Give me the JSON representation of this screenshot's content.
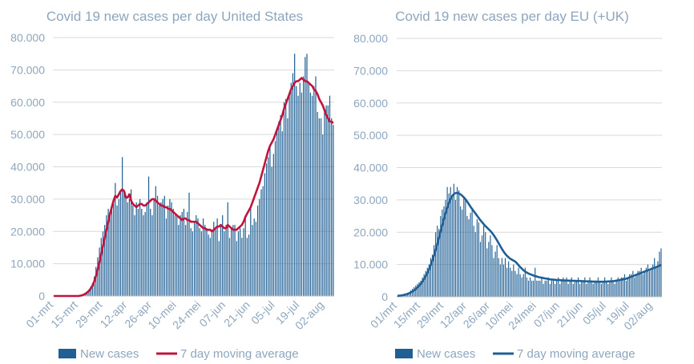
{
  "chart_data": [
    {
      "type": "bar+line",
      "title": "Covid 19 new cases per day United States",
      "colors": {
        "bars": "#1f5f94",
        "line": "#c0143c",
        "text": "#8ea6bd",
        "grid": "#d9d9d9"
      },
      "ylim": [
        0,
        80000
      ],
      "ytick_labels": [
        "0",
        "10.000",
        "20.000",
        "30.000",
        "40.000",
        "50.000",
        "60.000",
        "70.000",
        "80.000"
      ],
      "ytick_values": [
        0,
        10000,
        20000,
        30000,
        40000,
        50000,
        60000,
        70000,
        80000
      ],
      "xtick_labels": [
        "01-mrt",
        "15-mrt",
        "29-mrt",
        "12-apr",
        "26-apr",
        "10-mei",
        "24-mei",
        "07-jun",
        "21-jun",
        "05-jul",
        "19-jul",
        "02-aug"
      ],
      "legend": [
        "New cases",
        "7 day moving average"
      ],
      "x_start": "2020-03-01",
      "n_days": 160,
      "series": [
        {
          "name": "New cases",
          "kind": "bar",
          "values": [
            0,
            0,
            0,
            0,
            0,
            0,
            0,
            0,
            0,
            0,
            0,
            0,
            0,
            0,
            0,
            200,
            400,
            600,
            1000,
            1500,
            2000,
            3000,
            4000,
            6000,
            9000,
            12000,
            15000,
            18000,
            20000,
            22000,
            25000,
            27000,
            26000,
            28000,
            30000,
            35000,
            28000,
            30000,
            32000,
            43000,
            32000,
            31000,
            29000,
            30000,
            33000,
            28000,
            25000,
            29000,
            27000,
            30000,
            27000,
            25000,
            26000,
            29000,
            37000,
            27000,
            25000,
            30000,
            34000,
            31000,
            28000,
            29000,
            30000,
            31000,
            24000,
            28000,
            30000,
            29000,
            27000,
            25000,
            25000,
            22000,
            25000,
            26000,
            27000,
            22000,
            26000,
            32000,
            21000,
            20000,
            23000,
            25000,
            24000,
            21000,
            20000,
            24000,
            22000,
            21000,
            19000,
            18000,
            20000,
            23000,
            21000,
            24000,
            17000,
            22000,
            25000,
            20000,
            22000,
            29000,
            18000,
            21000,
            22000,
            22000,
            17000,
            20000,
            21000,
            18000,
            21000,
            25000,
            18000,
            19000,
            27000,
            22000,
            24000,
            23000,
            28000,
            30000,
            33000,
            34000,
            38000,
            41000,
            43000,
            46000,
            40000,
            44000,
            48000,
            52000,
            54000,
            56000,
            51000,
            60000,
            61000,
            55000,
            63000,
            66000,
            69000,
            75000,
            65000,
            62000,
            66000,
            63000,
            68000,
            74000,
            75000,
            66000,
            63000,
            62000,
            65000,
            68000,
            57000,
            55000,
            55000,
            50000,
            57000,
            59000,
            59000,
            62000,
            55000,
            53000
          ]
        },
        {
          "name": "7 day moving average",
          "kind": "line",
          "values": [
            0,
            0,
            0,
            0,
            0,
            0,
            0,
            0,
            0,
            0,
            0,
            0,
            0,
            0,
            0,
            100,
            200,
            400,
            700,
            1100,
            1600,
            2300,
            3200,
            4500,
            6200,
            8200,
            10500,
            13000,
            15500,
            18000,
            20500,
            23000,
            25500,
            27500,
            29500,
            31000,
            30500,
            31500,
            32500,
            33000,
            32500,
            30500,
            30500,
            31500,
            29500,
            28500,
            28000,
            27500,
            28000,
            28500,
            28500,
            28000,
            28000,
            28500,
            29000,
            29500,
            30000,
            30000,
            29500,
            29000,
            28500,
            28000,
            28000,
            27500,
            27500,
            27000,
            27000,
            26500,
            26000,
            25500,
            25000,
            24500,
            24000,
            23500,
            24000,
            24000,
            23500,
            23500,
            23000,
            23000,
            23000,
            23000,
            22500,
            22000,
            21500,
            21000,
            21000,
            20500,
            20500,
            20500,
            20000,
            20500,
            21000,
            21500,
            21500,
            22000,
            21500,
            21000,
            21000,
            22000,
            21500,
            21000,
            20500,
            20500,
            20500,
            21000,
            21500,
            22000,
            23000,
            24500,
            25500,
            26500,
            27500,
            29000,
            30500,
            32000,
            33500,
            35000,
            37000,
            39000,
            41000,
            43000,
            45000,
            46500,
            47500,
            48500,
            50000,
            51500,
            53000,
            54500,
            56000,
            58000,
            59500,
            61000,
            62500,
            64000,
            65000,
            66000,
            66500,
            66500,
            67000,
            67500,
            67000,
            66500,
            66500,
            66000,
            65500,
            65000,
            64000,
            63500,
            62500,
            61000,
            60000,
            59000,
            57500,
            56000,
            55000,
            54000,
            54000,
            53500
          ]
        }
      ]
    },
    {
      "type": "bar+line",
      "title": "Covid 19 new cases per day EU  (+UK)",
      "colors": {
        "bars": "#1f5f94",
        "line": "#1f5f94",
        "text": "#8ea6bd",
        "grid": "#d9d9d9"
      },
      "ylim": [
        0,
        80000
      ],
      "ytick_labels": [
        "0",
        "10.000",
        "20.000",
        "30.000",
        "40.000",
        "50.000",
        "60.000",
        "70.000",
        "80.000"
      ],
      "ytick_values": [
        0,
        10000,
        20000,
        30000,
        40000,
        50000,
        60000,
        70000,
        80000
      ],
      "xtick_labels": [
        "01/mrt",
        "15/mrt",
        "29/mrt",
        "12/apr",
        "26/apr",
        "10/mei",
        "24/mei",
        "07/jun",
        "21/jun",
        "05/jul",
        "19/jul",
        "02/aug"
      ],
      "legend": [
        "New cases",
        "7 day moving average"
      ],
      "x_start": "2020-03-01",
      "n_days": 160,
      "series": [
        {
          "name": "New cases",
          "kind": "bar",
          "values": [
            200,
            300,
            400,
            500,
            700,
            900,
            1200,
            1500,
            2000,
            2500,
            3000,
            3500,
            4000,
            4500,
            5000,
            6000,
            7000,
            8000,
            9000,
            10000,
            12000,
            13000,
            16000,
            20000,
            22000,
            21000,
            25000,
            27000,
            28000,
            30000,
            34000,
            32000,
            34000,
            31000,
            35000,
            30000,
            34000,
            33000,
            28000,
            27000,
            31000,
            30000,
            25000,
            24000,
            26000,
            27000,
            22000,
            20000,
            24000,
            23000,
            17000,
            19000,
            22000,
            20000,
            15000,
            17000,
            19000,
            16000,
            12000,
            14000,
            16000,
            12000,
            10000,
            12000,
            10000,
            12000,
            9000,
            11000,
            9000,
            8000,
            10000,
            8000,
            7000,
            9000,
            7000,
            6000,
            7000,
            9000,
            6000,
            5000,
            6000,
            5000,
            5000,
            9000,
            5000,
            5000,
            5000,
            6000,
            4000,
            5000,
            5000,
            6000,
            4000,
            5000,
            5000,
            4000,
            5000,
            6000,
            4000,
            5000,
            6000,
            5000,
            6000,
            4000,
            5000,
            6000,
            4000,
            5000,
            5000,
            6000,
            4000,
            5000,
            5000,
            6000,
            4000,
            5000,
            6000,
            5000,
            4000,
            5000,
            5000,
            6000,
            5000,
            4000,
            5000,
            6000,
            5000,
            4000,
            5000,
            6000,
            5000,
            4000,
            5000,
            6000,
            5000,
            6000,
            6000,
            7000,
            5000,
            6000,
            7000,
            7000,
            8000,
            6000,
            7000,
            8000,
            8000,
            9000,
            7000,
            8000,
            9000,
            10000,
            8000,
            9000,
            10000,
            12000,
            9000,
            11000,
            14000,
            15000
          ]
        },
        {
          "name": "7 day moving average",
          "kind": "line",
          "values": [
            300,
            350,
            400,
            500,
            600,
            750,
            900,
            1100,
            1350,
            1650,
            2000,
            2400,
            2900,
            3400,
            4000,
            4700,
            5500,
            6400,
            7400,
            8500,
            9800,
            11200,
            12800,
            14500,
            16300,
            18200,
            20200,
            22200,
            24100,
            25900,
            27600,
            29100,
            30300,
            31200,
            31800,
            32100,
            32200,
            32000,
            31700,
            31300,
            30800,
            30200,
            29500,
            28700,
            27900,
            27200,
            26500,
            25800,
            25100,
            24400,
            23700,
            23100,
            22500,
            21900,
            21400,
            20900,
            20400,
            19800,
            19100,
            18300,
            17500,
            16600,
            15700,
            14800,
            14000,
            13300,
            12700,
            12200,
            11800,
            11500,
            11200,
            10900,
            10400,
            9800,
            9200,
            8700,
            8200,
            7800,
            7500,
            7200,
            7000,
            6800,
            6600,
            6400,
            6300,
            6100,
            6000,
            5900,
            5800,
            5700,
            5600,
            5500,
            5400,
            5350,
            5300,
            5250,
            5200,
            5200,
            5150,
            5100,
            5100,
            5050,
            5050,
            5000,
            5000,
            5000,
            4950,
            4950,
            4900,
            4900,
            4900,
            4850,
            4850,
            4800,
            4800,
            4800,
            4750,
            4750,
            4700,
            4700,
            4700,
            4650,
            4650,
            4650,
            4650,
            4700,
            4700,
            4750,
            4800,
            4800,
            4850,
            4900,
            5000,
            5100,
            5200,
            5300,
            5400,
            5500,
            5600,
            5800,
            6000,
            6200,
            6400,
            6600,
            6800,
            7000,
            7200,
            7400,
            7600,
            7800,
            8000,
            8200,
            8400,
            8600,
            8800,
            9000,
            9200,
            9400,
            9600,
            9900
          ]
        }
      ]
    }
  ]
}
